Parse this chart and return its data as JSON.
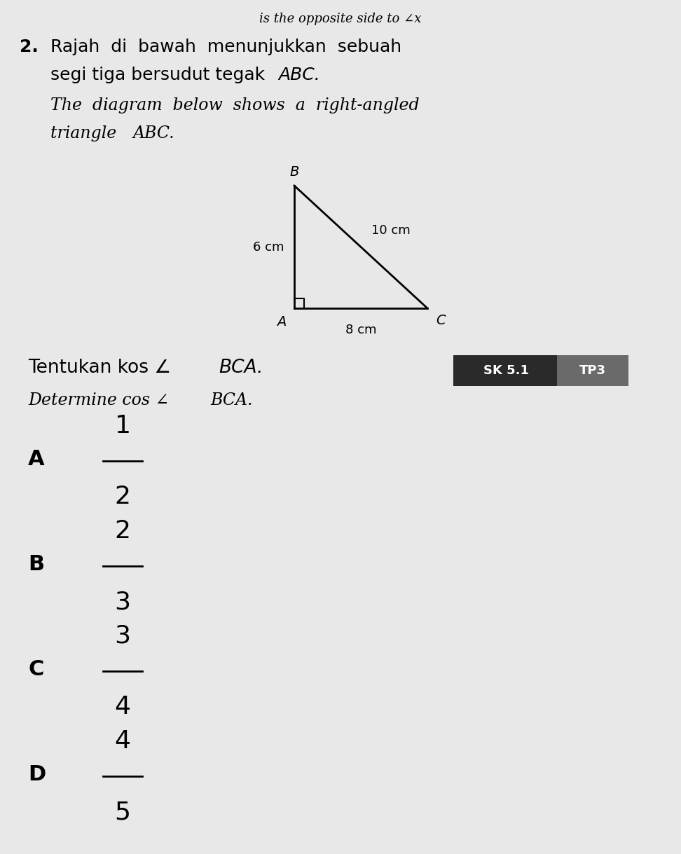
{
  "background_color": "#e8e8e8",
  "top_text": "is the opposite side to ∠x",
  "question_number": "2.",
  "options": [
    {
      "label": "A",
      "num": "1",
      "den": "2"
    },
    {
      "label": "B",
      "num": "2",
      "den": "3"
    },
    {
      "label": "C",
      "num": "3",
      "den": "4"
    },
    {
      "label": "D",
      "num": "4",
      "den": "5"
    }
  ],
  "sk_label": "SK 5.1",
  "tp_label": "TP3",
  "sk_bg_color": "#2a2a2a",
  "tp_bg_color": "#6a6a6a"
}
